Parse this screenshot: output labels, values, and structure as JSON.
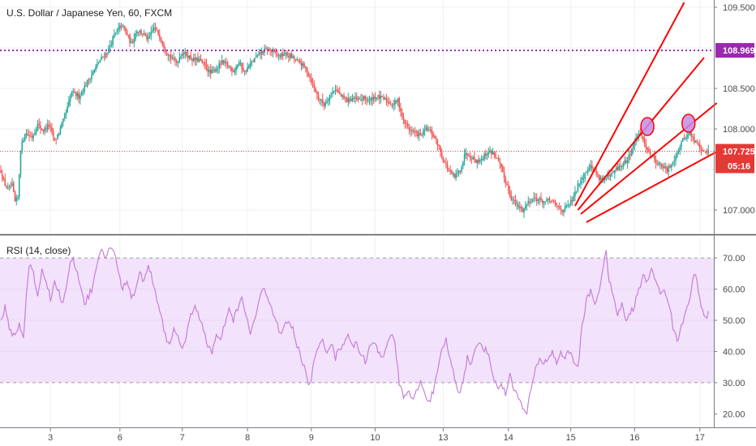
{
  "header": {
    "title": "U.S. Dollar / Japanese Yen, 60, FXCM"
  },
  "rsi_panel": {
    "label": "RSI (14, close)"
  },
  "colors": {
    "up": "#26a69a",
    "down": "#ef5350",
    "trend_lines": "#ff0000",
    "purple_level": "#9c27b0",
    "price_line": "#e53935",
    "rsi_line": "#c77fd9",
    "rsi_band": "#f2e2fb"
  },
  "chart_data": [
    {
      "type": "candlestick",
      "symbol": "USD/JPY",
      "interval": "60",
      "ylim": [
        106.72,
        109.56
      ],
      "y_ticks": [
        "109.500",
        "108.500",
        "108.000",
        "107.000"
      ],
      "x_ticks": [
        "3",
        "6",
        "7",
        "8",
        "9",
        "10",
        "13",
        "14",
        "15",
        "16",
        "17"
      ],
      "anchors": [
        [
          0,
          107.48
        ],
        [
          2,
          107.35
        ],
        [
          5,
          107.25
        ],
        [
          8,
          107.3
        ],
        [
          10,
          107.1
        ],
        [
          12,
          107.15
        ],
        [
          14,
          107.75
        ],
        [
          17,
          107.95
        ],
        [
          22,
          107.9
        ],
        [
          26,
          108.05
        ],
        [
          30,
          107.98
        ],
        [
          34,
          108.05
        ],
        [
          38,
          107.85
        ],
        [
          42,
          108.0
        ],
        [
          46,
          108.2
        ],
        [
          50,
          108.45
        ],
        [
          55,
          108.4
        ],
        [
          60,
          108.55
        ],
        [
          65,
          108.7
        ],
        [
          70,
          108.85
        ],
        [
          75,
          108.95
        ],
        [
          80,
          109.15
        ],
        [
          85,
          109.28
        ],
        [
          88,
          109.2
        ],
        [
          92,
          109.05
        ],
        [
          96,
          109.22
        ],
        [
          100,
          109.18
        ],
        [
          104,
          109.1
        ],
        [
          108,
          109.25
        ],
        [
          112,
          109.15
        ],
        [
          116,
          108.98
        ],
        [
          120,
          108.88
        ],
        [
          124,
          108.82
        ],
        [
          128,
          108.95
        ],
        [
          132,
          108.9
        ],
        [
          136,
          108.85
        ],
        [
          140,
          108.85
        ],
        [
          144,
          108.78
        ],
        [
          148,
          108.68
        ],
        [
          152,
          108.75
        ],
        [
          156,
          108.82
        ],
        [
          160,
          108.78
        ],
        [
          164,
          108.72
        ],
        [
          168,
          108.82
        ],
        [
          172,
          108.7
        ],
        [
          176,
          108.8
        ],
        [
          180,
          108.88
        ],
        [
          184,
          108.95
        ],
        [
          188,
          108.98
        ],
        [
          192,
          108.95
        ],
        [
          196,
          108.9
        ],
        [
          200,
          108.92
        ],
        [
          204,
          108.9
        ],
        [
          208,
          108.85
        ],
        [
          212,
          108.8
        ],
        [
          216,
          108.72
        ],
        [
          220,
          108.55
        ],
        [
          224,
          108.38
        ],
        [
          228,
          108.3
        ],
        [
          232,
          108.42
        ],
        [
          236,
          108.5
        ],
        [
          240,
          108.4
        ],
        [
          244,
          108.35
        ],
        [
          248,
          108.38
        ],
        [
          252,
          108.35
        ],
        [
          256,
          108.38
        ],
        [
          260,
          108.35
        ],
        [
          264,
          108.4
        ],
        [
          268,
          108.38
        ],
        [
          272,
          108.35
        ],
        [
          276,
          108.3
        ],
        [
          280,
          108.35
        ],
        [
          284,
          108.1
        ],
        [
          288,
          108.0
        ],
        [
          292,
          107.95
        ],
        [
          296,
          107.92
        ],
        [
          300,
          108.0
        ],
        [
          304,
          107.95
        ],
        [
          308,
          107.82
        ],
        [
          312,
          107.62
        ],
        [
          316,
          107.48
        ],
        [
          320,
          107.4
        ],
        [
          324,
          107.5
        ],
        [
          328,
          107.72
        ],
        [
          332,
          107.65
        ],
        [
          336,
          107.6
        ],
        [
          340,
          107.65
        ],
        [
          344,
          107.72
        ],
        [
          348,
          107.7
        ],
        [
          352,
          107.55
        ],
        [
          356,
          107.35
        ],
        [
          360,
          107.15
        ],
        [
          364,
          107.05
        ],
        [
          368,
          107.0
        ],
        [
          372,
          107.1
        ],
        [
          376,
          107.15
        ],
        [
          380,
          107.12
        ],
        [
          384,
          107.1
        ],
        [
          388,
          107.12
        ],
        [
          392,
          107.05
        ],
        [
          396,
          107.0
        ],
        [
          400,
          107.05
        ],
        [
          404,
          107.15
        ],
        [
          408,
          107.35
        ],
        [
          412,
          107.45
        ],
        [
          415,
          107.55
        ],
        [
          418,
          107.5
        ],
        [
          422,
          107.4
        ],
        [
          426,
          107.38
        ],
        [
          430,
          107.42
        ],
        [
          434,
          107.5
        ],
        [
          438,
          107.55
        ],
        [
          442,
          107.62
        ],
        [
          446,
          107.8
        ],
        [
          450,
          107.95
        ],
        [
          454,
          107.82
        ],
        [
          458,
          107.7
        ],
        [
          462,
          107.6
        ],
        [
          466,
          107.55
        ],
        [
          470,
          107.48
        ],
        [
          474,
          107.6
        ],
        [
          478,
          107.75
        ],
        [
          482,
          107.9
        ],
        [
          486,
          107.95
        ],
        [
          489,
          107.85
        ],
        [
          492,
          107.8
        ],
        [
          495,
          107.72
        ],
        [
          498,
          107.725
        ]
      ],
      "last_price": "107.725",
      "countdown": "05:16",
      "horizontal_level": "108.969",
      "partially_hidden_tick_label": "1"
    },
    {
      "type": "line",
      "name": "RSI (14, close)",
      "ylim": [
        17.5,
        76
      ],
      "y_ticks": [
        "70.00",
        "60.00",
        "50.00",
        "40.00",
        "30.00",
        "20.00"
      ],
      "band": [
        30,
        70
      ],
      "anchors": [
        [
          0,
          50
        ],
        [
          3,
          54
        ],
        [
          6,
          47
        ],
        [
          10,
          45
        ],
        [
          13,
          49
        ],
        [
          16,
          44
        ],
        [
          18,
          58
        ],
        [
          20,
          68
        ],
        [
          23,
          65
        ],
        [
          26,
          58
        ],
        [
          29,
          66
        ],
        [
          32,
          63
        ],
        [
          35,
          57
        ],
        [
          38,
          62
        ],
        [
          41,
          59
        ],
        [
          44,
          55
        ],
        [
          47,
          63
        ],
        [
          50,
          70
        ],
        [
          53,
          67
        ],
        [
          56,
          62
        ],
        [
          59,
          55
        ],
        [
          62,
          58
        ],
        [
          65,
          61
        ],
        [
          68,
          68
        ],
        [
          71,
          72
        ],
        [
          74,
          70
        ],
        [
          77,
          74
        ],
        [
          80,
          72
        ],
        [
          83,
          65
        ],
        [
          86,
          60
        ],
        [
          89,
          63
        ],
        [
          92,
          57
        ],
        [
          95,
          60
        ],
        [
          98,
          66
        ],
        [
          101,
          62
        ],
        [
          104,
          68
        ],
        [
          107,
          63
        ],
        [
          110,
          57
        ],
        [
          113,
          52
        ],
        [
          116,
          45
        ],
        [
          119,
          42
        ],
        [
          122,
          48
        ],
        [
          125,
          44
        ],
        [
          128,
          40
        ],
        [
          131,
          46
        ],
        [
          134,
          52
        ],
        [
          137,
          55
        ],
        [
          140,
          50
        ],
        [
          143,
          47
        ],
        [
          146,
          42
        ],
        [
          149,
          40
        ],
        [
          152,
          45
        ],
        [
          155,
          43
        ],
        [
          158,
          49
        ],
        [
          161,
          53
        ],
        [
          164,
          50
        ],
        [
          167,
          54
        ],
        [
          170,
          57
        ],
        [
          173,
          51
        ],
        [
          176,
          46
        ],
        [
          179,
          50
        ],
        [
          182,
          56
        ],
        [
          185,
          60
        ],
        [
          188,
          58
        ],
        [
          191,
          54
        ],
        [
          194,
          50
        ],
        [
          197,
          45
        ],
        [
          200,
          48
        ],
        [
          203,
          50
        ],
        [
          206,
          47
        ],
        [
          209,
          42
        ],
        [
          212,
          38
        ],
        [
          215,
          33
        ],
        [
          218,
          29
        ],
        [
          221,
          37
        ],
        [
          224,
          41
        ],
        [
          227,
          44
        ],
        [
          230,
          40
        ],
        [
          233,
          43
        ],
        [
          236,
          38
        ],
        [
          239,
          41
        ],
        [
          242,
          43
        ],
        [
          245,
          46
        ],
        [
          248,
          41
        ],
        [
          251,
          43
        ],
        [
          254,
          39
        ],
        [
          257,
          37
        ],
        [
          260,
          41
        ],
        [
          263,
          43
        ],
        [
          266,
          40
        ],
        [
          269,
          38
        ],
        [
          272,
          42
        ],
        [
          275,
          46
        ],
        [
          278,
          42
        ],
        [
          281,
          30
        ],
        [
          284,
          25
        ],
        [
          287,
          28
        ],
        [
          290,
          24
        ],
        [
          293,
          27
        ],
        [
          296,
          30
        ],
        [
          299,
          27
        ],
        [
          302,
          24
        ],
        [
          305,
          27
        ],
        [
          308,
          33
        ],
        [
          311,
          40
        ],
        [
          314,
          44
        ],
        [
          317,
          37
        ],
        [
          320,
          32
        ],
        [
          323,
          26
        ],
        [
          326,
          31
        ],
        [
          329,
          38
        ],
        [
          332,
          36
        ],
        [
          335,
          41
        ],
        [
          338,
          43
        ],
        [
          341,
          41
        ],
        [
          344,
          39
        ],
        [
          347,
          33
        ],
        [
          350,
          28
        ],
        [
          353,
          30
        ],
        [
          356,
          26
        ],
        [
          359,
          33
        ],
        [
          362,
          28
        ],
        [
          365,
          25
        ],
        [
          368,
          22
        ],
        [
          371,
          20
        ],
        [
          374,
          28
        ],
        [
          377,
          34
        ],
        [
          380,
          38
        ],
        [
          383,
          36
        ],
        [
          386,
          38
        ],
        [
          389,
          40
        ],
        [
          392,
          36
        ],
        [
          395,
          40
        ],
        [
          398,
          38
        ],
        [
          401,
          40
        ],
        [
          404,
          37
        ],
        [
          407,
          35
        ],
        [
          410,
          48
        ],
        [
          413,
          56
        ],
        [
          416,
          60
        ],
        [
          419,
          55
        ],
        [
          422,
          60
        ],
        [
          425,
          67
        ],
        [
          427,
          72
        ],
        [
          429,
          63
        ],
        [
          432,
          57
        ],
        [
          435,
          52
        ],
        [
          438,
          55
        ],
        [
          441,
          50
        ],
        [
          444,
          52
        ],
        [
          447,
          55
        ],
        [
          450,
          60
        ],
        [
          453,
          64
        ],
        [
          456,
          62
        ],
        [
          459,
          67
        ],
        [
          462,
          63
        ],
        [
          465,
          58
        ],
        [
          468,
          60
        ],
        [
          471,
          56
        ],
        [
          474,
          48
        ],
        [
          477,
          43
        ],
        [
          480,
          48
        ],
        [
          483,
          53
        ],
        [
          486,
          58
        ],
        [
          489,
          65
        ],
        [
          491,
          62
        ],
        [
          494,
          55
        ],
        [
          497,
          50
        ],
        [
          499,
          52
        ]
      ]
    }
  ],
  "x_tick_positions": [
    [
      3,
      35
    ],
    [
      6,
      84
    ],
    [
      7,
      128
    ],
    [
      8,
      174
    ],
    [
      9,
      219
    ],
    [
      10,
      264
    ],
    [
      13,
      312
    ],
    [
      14,
      358
    ],
    [
      15,
      402
    ],
    [
      16,
      447
    ],
    [
      17,
      493
    ]
  ],
  "trend_lines": [
    [
      [
        405,
        107.05
      ],
      [
        482,
        109.56
      ]
    ],
    [
      [
        407,
        107.0
      ],
      [
        496,
        108.88
      ]
    ],
    [
      [
        409,
        106.95
      ],
      [
        505,
        108.32
      ]
    ],
    [
      [
        413,
        106.85
      ],
      [
        505,
        107.72
      ]
    ]
  ],
  "highlight_ellipses": [
    [
      456,
      108.03
    ],
    [
      485,
      108.07
    ]
  ]
}
